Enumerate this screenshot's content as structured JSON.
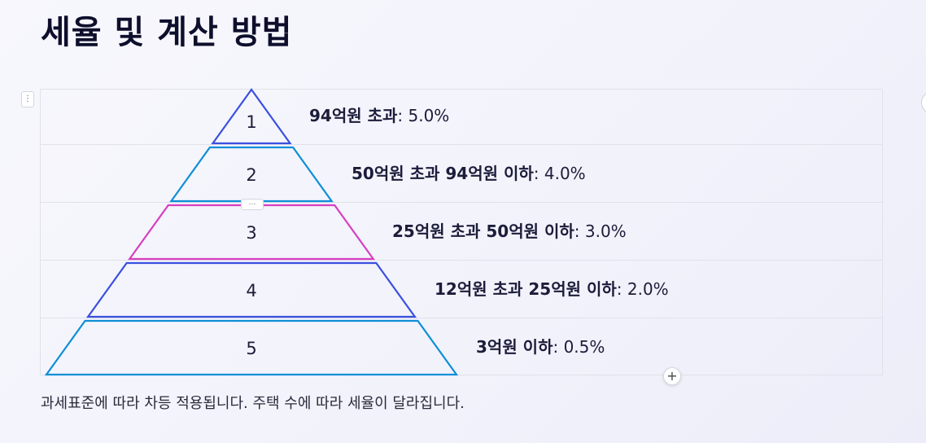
{
  "page": {
    "title": "세율 및 계산 방법",
    "caption": "과세표준에 따라 차등 적용됩니다. 주택 수에 따라 세율이 달라집니다."
  },
  "controls": {
    "drag_handle_icon": "⋮",
    "mid_handle_icon": "…",
    "add_icon": "+"
  },
  "pyramid": {
    "tiers": [
      {
        "number": "1",
        "label_bold": "94억원 초과",
        "label_rest": ": 5.0%",
        "color": "#3a50e0"
      },
      {
        "number": "2",
        "label_bold": "50억원 초과 94억원 이하",
        "label_rest": ": 4.0%",
        "color": "#0d8fd6"
      },
      {
        "number": "3",
        "label_bold": "25억원 초과 50억원 이하",
        "label_rest": ": 3.0%",
        "color": "#d63fbf"
      },
      {
        "number": "4",
        "label_bold": "12억원 초과 25억원 이하",
        "label_rest": ": 2.0%",
        "color": "#3a50e0"
      },
      {
        "number": "5",
        "label_bold": "3억원 이하",
        "label_rest": ": 0.5%",
        "color": "#0d8fd6"
      }
    ]
  }
}
